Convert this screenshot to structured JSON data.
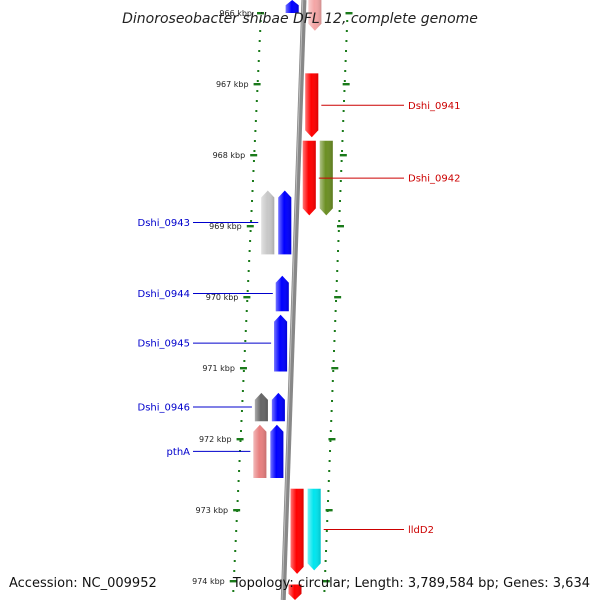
{
  "title": "Dinoroseobacter shibae DFL 12, complete genome",
  "footer": {
    "accession": "Accession: NC_009952",
    "summary": "Topology: circular; Length: 3,789,584 bp; Genes: 3,634"
  },
  "colors": {
    "backbone": "#888888",
    "ticks": "#1a7a1a",
    "plus_label": "#cc0000",
    "minus_label": "#0000cc"
  },
  "ticks": [
    {
      "label": "966 kbp",
      "kbp": 966
    },
    {
      "label": "967 kbp",
      "kbp": 967
    },
    {
      "label": "968 kbp",
      "kbp": 968
    },
    {
      "label": "969 kbp",
      "kbp": 969
    },
    {
      "label": "970 kbp",
      "kbp": 970
    },
    {
      "label": "971 kbp",
      "kbp": 971
    },
    {
      "label": "972 kbp",
      "kbp": 972
    },
    {
      "label": "973 kbp",
      "kbp": 973
    },
    {
      "label": "974 kbp",
      "kbp": 974
    }
  ],
  "genes": [
    {
      "name": "",
      "strand": "+",
      "track": 1,
      "start_kbp": 965.75,
      "end_kbp": 966.25,
      "color": "#f4a6a6"
    },
    {
      "name": "Dshi_0941",
      "strand": "+",
      "track": 1,
      "start_kbp": 966.85,
      "end_kbp": 967.75,
      "color": "#ff0000"
    },
    {
      "name": "Dshi_0942",
      "strand": "+",
      "track": 1,
      "start_kbp": 967.8,
      "end_kbp": 968.85,
      "color": "#ff0000"
    },
    {
      "name": "",
      "strand": "+",
      "track": 2,
      "start_kbp": 967.8,
      "end_kbp": 968.85,
      "color": "#6b8e23"
    },
    {
      "name": "",
      "strand": "-",
      "track": 1,
      "start_kbp": 965.7,
      "end_kbp": 966.0,
      "color": "#0000ff"
    },
    {
      "name": "Dshi_0943",
      "strand": "-",
      "track": 2,
      "start_kbp": 968.5,
      "end_kbp": 969.4,
      "color": "#c8c8c8"
    },
    {
      "name": "",
      "strand": "-",
      "track": 1,
      "start_kbp": 968.5,
      "end_kbp": 969.4,
      "color": "#0000ff"
    },
    {
      "name": "Dshi_0944",
      "strand": "-",
      "track": 1,
      "start_kbp": 969.7,
      "end_kbp": 970.2,
      "color": "#0000ff"
    },
    {
      "name": "Dshi_0945",
      "strand": "-",
      "track": 1,
      "start_kbp": 970.25,
      "end_kbp": 971.05,
      "color": "#0000ff"
    },
    {
      "name": "Dshi_0946",
      "strand": "-",
      "track": 2,
      "start_kbp": 971.35,
      "end_kbp": 971.75,
      "color": "#666666"
    },
    {
      "name": "",
      "strand": "-",
      "track": 1,
      "start_kbp": 971.35,
      "end_kbp": 971.75,
      "color": "#0000ff"
    },
    {
      "name": "pthA",
      "strand": "-",
      "track": 2,
      "start_kbp": 971.8,
      "end_kbp": 972.55,
      "color": "#e88080"
    },
    {
      "name": "",
      "strand": "-",
      "track": 1,
      "start_kbp": 971.8,
      "end_kbp": 972.55,
      "color": "#0000ff"
    },
    {
      "name": "",
      "strand": "+",
      "track": 1,
      "start_kbp": 972.7,
      "end_kbp": 973.9,
      "color": "#ff0000"
    },
    {
      "name": "lldD2",
      "strand": "+",
      "track": 2,
      "start_kbp": 972.7,
      "end_kbp": 973.85,
      "color": "#00e5ee"
    },
    {
      "name": "",
      "strand": "+",
      "track": 1,
      "start_kbp": 974.05,
      "end_kbp": 974.3,
      "color": "#ff0000"
    }
  ]
}
